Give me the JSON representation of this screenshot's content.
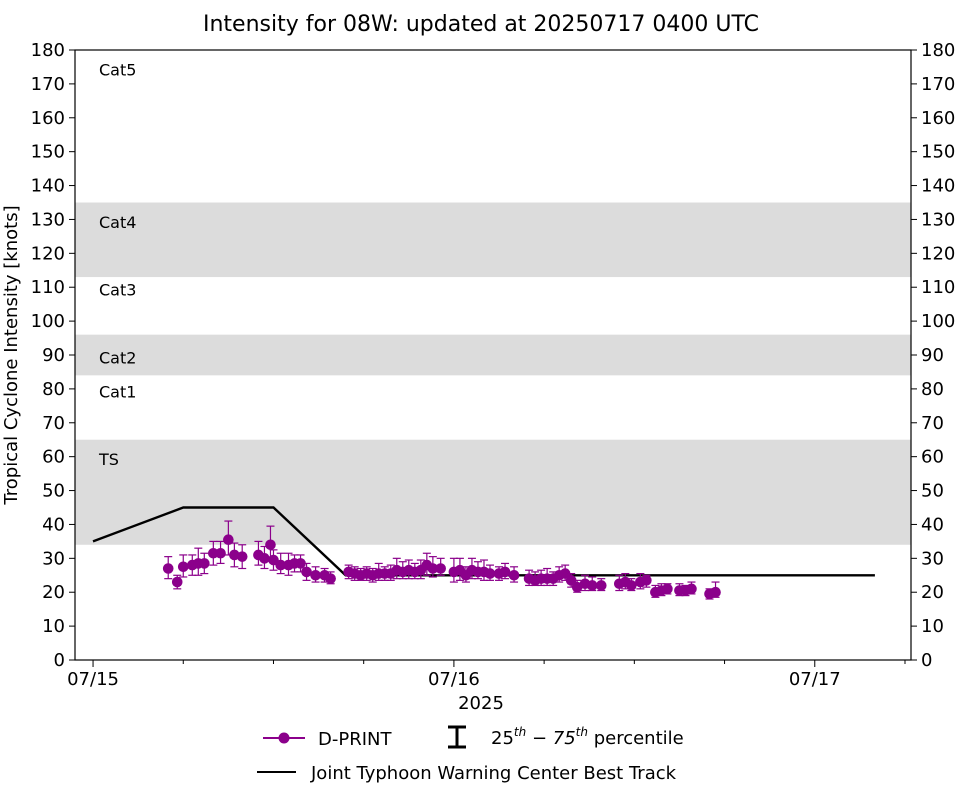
{
  "chart_data": {
    "type": "scatter",
    "title": "Intensity for 08W: updated at 20250717 0400 UTC",
    "ylabel": "Tropical Cyclone Intensity [knots]",
    "xlabel": "2025",
    "x_unit": "hours since 07/15 00 UTC",
    "xlim": [
      -3,
      136
    ],
    "ylim": [
      0,
      180
    ],
    "yticks": [
      0,
      10,
      20,
      30,
      40,
      50,
      60,
      70,
      80,
      90,
      100,
      110,
      120,
      130,
      140,
      150,
      160,
      170,
      180
    ],
    "xticks_major": [
      {
        "x": 0,
        "label": "07/15"
      },
      {
        "x": 60,
        "label": "07/16"
      },
      {
        "x": 120,
        "label": "07/17"
      }
    ],
    "xticks_minor": [
      15,
      30,
      45,
      75,
      90,
      105,
      135
    ],
    "bands": [
      {
        "from": 34,
        "to": 65,
        "label": "TS",
        "shaded": true,
        "label_y": 59
      },
      {
        "from": 64,
        "to": 84,
        "label": "Cat1",
        "shaded": false,
        "label_y": 79
      },
      {
        "from": 84,
        "to": 96,
        "label": "Cat2",
        "shaded": true,
        "label_y": 89
      },
      {
        "from": 96,
        "to": 113,
        "label": "Cat3",
        "shaded": false,
        "label_y": 109
      },
      {
        "from": 113,
        "to": 135,
        "label": "Cat4",
        "shaded": true,
        "label_y": 129
      },
      {
        "from": 135,
        "to": 180,
        "label": "Cat5",
        "shaded": false,
        "label_y": 174
      }
    ],
    "band_color": "#dcdcdc",
    "series": [
      {
        "name": "Joint Typhoon Warning Center Best Track",
        "kind": "line",
        "color": "#000000",
        "x": [
          0,
          15,
          30,
          42,
          60,
          75,
          90,
          105,
          130
        ],
        "y": [
          35,
          45,
          45,
          25,
          25,
          25,
          25,
          25,
          25
        ]
      },
      {
        "name": "D-PRINT",
        "kind": "scatter-errorbar",
        "color": "#8b008b",
        "points": [
          [
            12.5,
            27,
            24,
            30.5
          ],
          [
            14,
            23,
            21,
            25
          ],
          [
            15,
            27.5,
            24.5,
            31
          ],
          [
            16.5,
            28,
            25,
            31
          ],
          [
            17.5,
            28.5,
            25,
            33
          ],
          [
            18.5,
            28.5,
            25.5,
            31.5
          ],
          [
            20,
            31.5,
            28,
            35
          ],
          [
            21.2,
            31.5,
            28.5,
            35
          ],
          [
            22.5,
            35.5,
            31,
            41
          ],
          [
            23.5,
            31,
            27.5,
            34.5
          ],
          [
            24.8,
            30.5,
            27,
            34
          ],
          [
            27.5,
            31,
            28,
            35
          ],
          [
            28.5,
            30,
            27,
            33.5
          ],
          [
            29.5,
            34,
            30,
            39.5
          ],
          [
            30,
            29.5,
            26.5,
            32.5
          ],
          [
            31.2,
            28,
            25.5,
            31.5
          ],
          [
            32.5,
            28,
            25,
            31.5
          ],
          [
            33.5,
            28.5,
            26,
            31
          ],
          [
            34.5,
            28.5,
            26,
            31
          ],
          [
            35.5,
            26,
            23.5,
            28.5
          ],
          [
            37,
            25,
            23,
            27.5
          ],
          [
            38.5,
            25,
            23,
            27
          ],
          [
            39.5,
            24,
            22.5,
            26
          ],
          [
            42.5,
            26,
            24,
            28
          ],
          [
            43.5,
            25.5,
            23.5,
            27.5
          ],
          [
            44.5,
            25,
            23.5,
            27
          ],
          [
            45.5,
            25.5,
            23.5,
            27.5
          ],
          [
            46.5,
            25,
            23,
            27
          ],
          [
            47.5,
            25.5,
            23.5,
            28.5
          ],
          [
            48.5,
            25.5,
            23.5,
            27.5
          ],
          [
            49.5,
            25.5,
            23.5,
            28
          ],
          [
            50.5,
            26.5,
            24,
            30
          ],
          [
            51.5,
            26,
            24,
            29
          ],
          [
            52.5,
            26.5,
            24,
            29.5
          ],
          [
            53.5,
            26,
            24,
            28.5
          ],
          [
            54.5,
            26.5,
            24,
            29.5
          ],
          [
            55.5,
            28,
            25,
            31.5
          ],
          [
            56.5,
            27,
            24.5,
            30.5
          ],
          [
            57.8,
            27,
            25,
            30
          ],
          [
            60,
            26,
            23,
            30
          ],
          [
            61,
            26.5,
            23.5,
            30
          ],
          [
            62,
            25,
            23,
            27.5
          ],
          [
            63,
            26.5,
            24,
            30
          ],
          [
            64,
            26,
            24,
            29
          ],
          [
            65,
            26,
            23.5,
            29.5
          ],
          [
            66,
            25.5,
            23.5,
            28
          ],
          [
            67.5,
            25.5,
            23.5,
            27.5
          ],
          [
            68.5,
            26,
            24,
            28.5
          ],
          [
            70,
            25,
            23,
            27.5
          ],
          [
            72.5,
            24,
            22,
            26.5
          ],
          [
            73.5,
            23.5,
            22,
            26
          ],
          [
            74.5,
            24,
            22,
            26.5
          ],
          [
            75.5,
            24,
            22,
            27
          ],
          [
            76.5,
            24,
            22,
            26
          ],
          [
            77.5,
            25,
            23,
            27.5
          ],
          [
            78.5,
            25.5,
            23.5,
            28
          ],
          [
            79.5,
            23.5,
            21.5,
            25.5
          ],
          [
            80.5,
            21.5,
            20,
            23.5
          ],
          [
            81.8,
            22.5,
            20.5,
            25
          ],
          [
            83,
            22,
            20.5,
            24.5
          ],
          [
            84.5,
            22,
            20.5,
            24
          ],
          [
            87.5,
            22.5,
            20.5,
            25
          ],
          [
            88.5,
            23,
            21,
            25.5
          ],
          [
            89.5,
            22,
            20.5,
            24
          ],
          [
            91,
            23,
            21,
            25.5
          ],
          [
            92,
            23.5,
            21.5,
            25
          ],
          [
            93.5,
            20,
            18.5,
            22
          ],
          [
            94.5,
            20.5,
            19,
            22.5
          ],
          [
            95.5,
            21,
            19.5,
            22.5
          ],
          [
            97.5,
            20.5,
            19,
            22.5
          ],
          [
            98.5,
            20.5,
            19,
            22
          ],
          [
            99.5,
            21,
            19.5,
            23
          ],
          [
            102.5,
            19.5,
            18,
            21
          ],
          [
            103.5,
            20,
            18.5,
            23
          ]
        ]
      }
    ],
    "legend": {
      "position": "bottom-center",
      "entries": [
        {
          "label": "D-PRINT",
          "marker": "line-dot"
        },
        {
          "label_base": "25",
          "sup1": "th",
          "label_mid": " − 75",
          "sup2": "th",
          "label_end": " percentile",
          "marker": "errorbar"
        },
        {
          "label": "Joint Typhoon Warning Center Best Track",
          "marker": "line"
        }
      ]
    }
  }
}
